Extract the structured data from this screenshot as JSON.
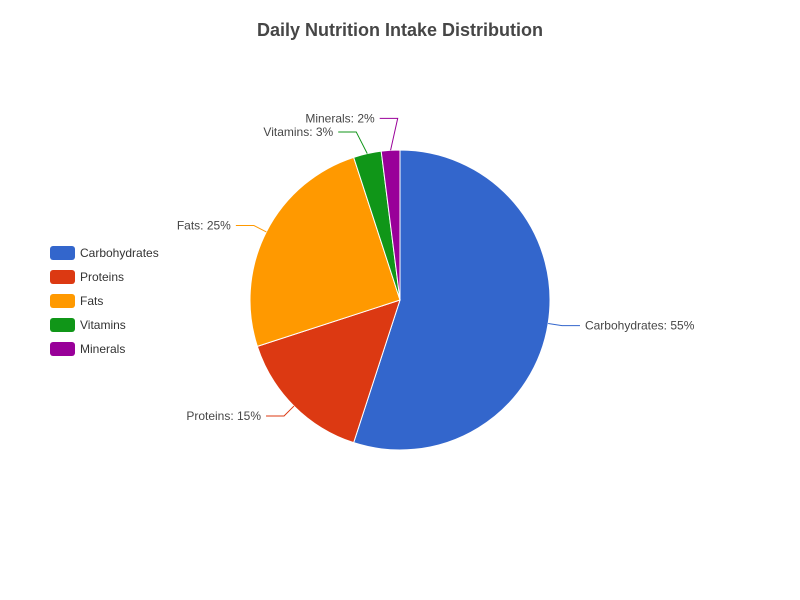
{
  "chart_data": {
    "type": "pie",
    "title": "Daily Nutrition Intake Distribution",
    "categories": [
      "Carbohydrates",
      "Proteins",
      "Fats",
      "Vitamins",
      "Minerals"
    ],
    "values": [
      55,
      15,
      25,
      3,
      2
    ],
    "unit": "%",
    "colors": [
      "#3366cc",
      "#dc3912",
      "#ff9900",
      "#109618",
      "#990099"
    ],
    "labels": [
      "Carbohydrates: 55%",
      "Proteins: 15%",
      "Fats: 25%",
      "Vitamins: 3%",
      "Minerals: 2%"
    ],
    "legend_position": "left",
    "start_angle": "12 o'clock, clockwise"
  }
}
